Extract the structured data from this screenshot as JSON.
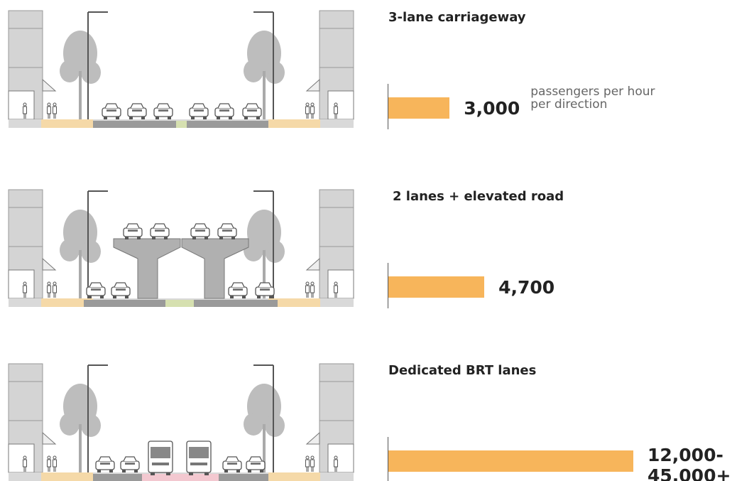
{
  "chart_data": {
    "type": "bar",
    "categories": [
      "3-lane carriageway",
      "2 lanes + elevated road",
      "Dedicated BRT lanes"
    ],
    "values": [
      3000,
      4700,
      12000
    ],
    "value_labels": [
      "3,000",
      "4,700",
      "12,000-45,000+"
    ],
    "annotation": "passengers per hour per direction",
    "color": "#f7b55b",
    "xlim": [
      0,
      12000
    ]
  }
}
